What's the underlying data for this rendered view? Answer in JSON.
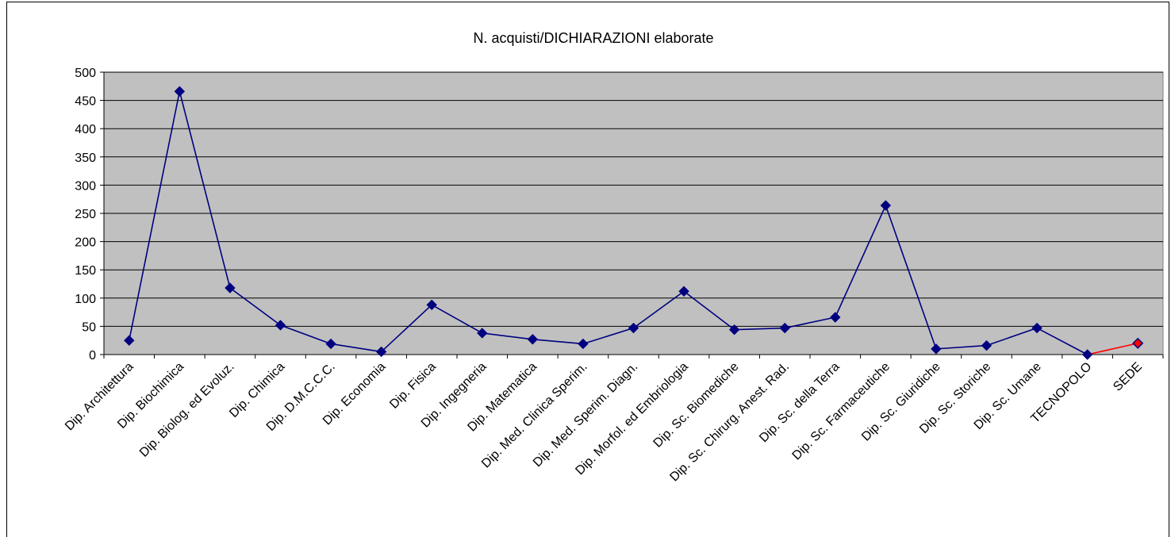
{
  "chart_data": {
    "type": "line",
    "title": "N. acquisti/DICHIARAZIONI elaborate",
    "xlabel": "",
    "ylabel": "",
    "ylim": [
      0,
      500
    ],
    "yticks": [
      0,
      50,
      100,
      150,
      200,
      250,
      300,
      350,
      400,
      450,
      500
    ],
    "grid": true,
    "legend": "none",
    "plot_background": "#c0c0c0",
    "line_color": "#000080",
    "marker_color": "#000080",
    "highlight_line_color": "#ff0000",
    "highlight_marker_color": "#ff0000",
    "categories": [
      "Dip. Architettura",
      "Dip. Biochimica",
      "Dip. Biolog. ed Evoluz.",
      "Dip. Chimica",
      "Dip. D.M.C.C.C.",
      "Dip. Economia",
      "Dip. Fisica",
      "Dip. Ingegneria",
      "Dip. Matematica",
      "Dip. Med. Clinica Sperim.",
      "Dip. Med. Sperim. Diagn.",
      "Dip. Morfol. ed Embriologia",
      "Dip. Sc. Biomediche",
      "Dip. Sc. Chirurg. Anest. Rad.",
      "Dip. Sc. della Terra",
      "Dip. Sc. Farmaceutiche",
      "Dip. Sc. Giuridiche",
      "Dip. Sc. Storiche",
      "Dip. Sc. Umane",
      "TECNOPOLO",
      "SEDE"
    ],
    "series": [
      {
        "values": [
          25,
          466,
          118,
          52,
          19,
          5,
          88,
          38,
          27,
          19,
          47,
          112,
          44,
          47,
          66,
          264,
          10,
          16,
          47,
          0,
          20
        ]
      }
    ]
  }
}
